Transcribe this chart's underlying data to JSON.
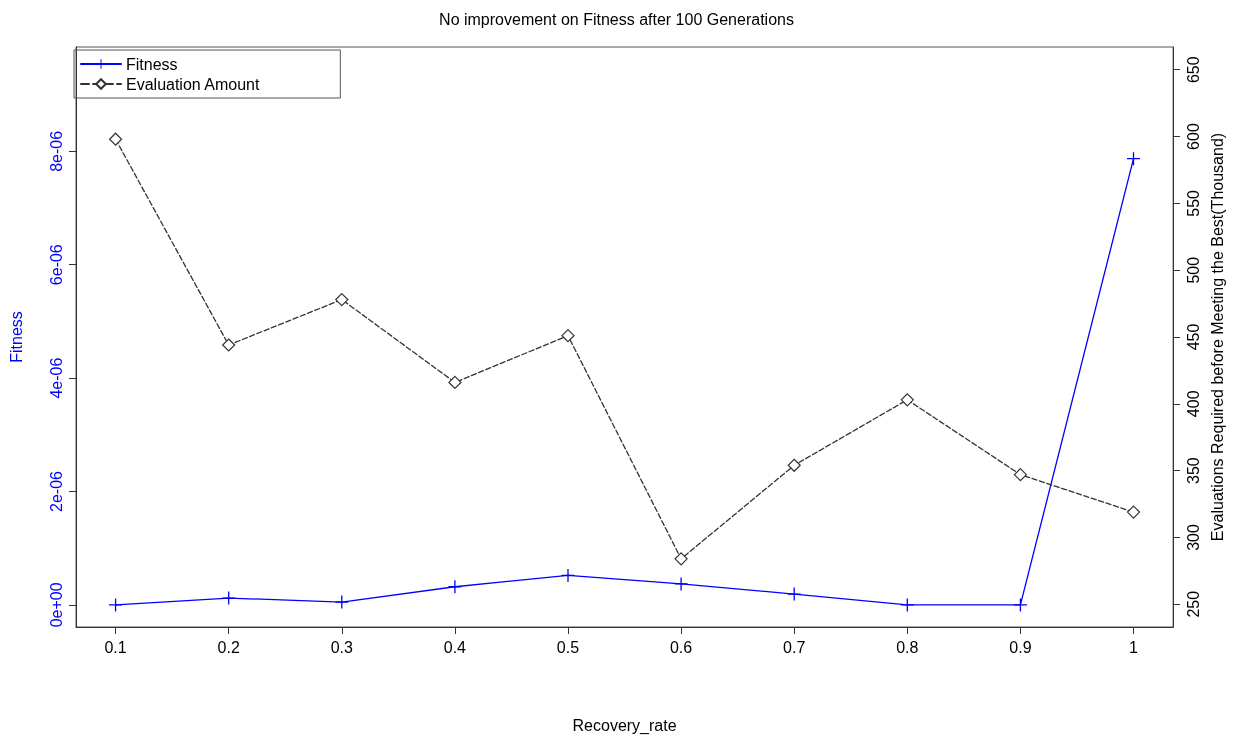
{
  "chart_data": {
    "type": "line",
    "title": "No improvement on Fitness after 100 Generations",
    "xlabel": "Recovery_rate",
    "ylabel": "Fitness",
    "y2label": "Evaluations Required before Meeting the Best(Thousand)",
    "x": [
      0.1,
      0.2,
      0.3,
      0.4,
      0.5,
      0.6,
      0.7,
      0.8,
      0.9,
      1
    ],
    "series": [
      {
        "name": "Fitness",
        "color": "#0000ff",
        "marker": "cross",
        "line_style": "solid",
        "values": [
          0,
          1.2e-07,
          5e-08,
          3.2e-07,
          5.2e-07,
          3.7e-07,
          1.9e-07,
          0,
          0,
          7.87e-06
        ]
      },
      {
        "name": "Evaluation Amount",
        "color": "#333333",
        "marker": "diamond",
        "line_style": "dashed",
        "axis": "y2",
        "values": [
          598,
          444,
          478,
          416,
          451,
          284,
          354,
          403,
          347,
          319
        ]
      }
    ],
    "xlim": [
      0.065,
      1.035
    ],
    "xticks": [
      0.1,
      0.2,
      0.3,
      0.4,
      0.5,
      0.6,
      0.7,
      0.8,
      0.9,
      1
    ],
    "ylim": [
      -3.9e-07,
      9.84e-06
    ],
    "yticks": [
      {
        "value": 0,
        "label": "0e+00"
      },
      {
        "value": 2e-06,
        "label": "2e-06"
      },
      {
        "value": 4e-06,
        "label": "4e-06"
      },
      {
        "value": 6e-06,
        "label": "6e-06"
      },
      {
        "value": 8e-06,
        "label": "8e-06"
      }
    ],
    "y2lim": [
      233,
      667
    ],
    "y2ticks": [
      250,
      300,
      350,
      400,
      450,
      500,
      550,
      600,
      650
    ],
    "grid": false,
    "legend": "top left"
  }
}
